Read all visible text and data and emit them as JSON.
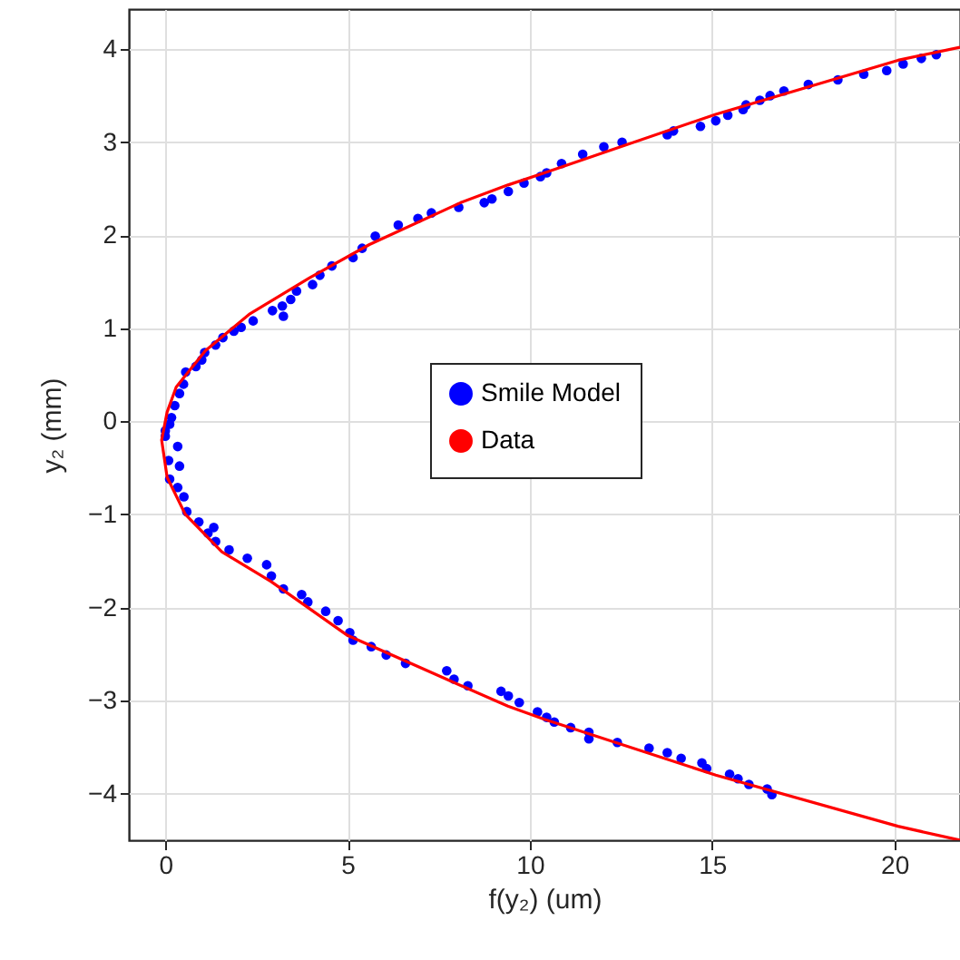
{
  "chart_data": {
    "type": "scatter",
    "xlabel": "f(y₂) (um)",
    "ylabel": "y₂ (mm)",
    "xlim": [
      -1,
      21.8
    ],
    "ylim": [
      -4.5,
      4.43
    ],
    "xticks": [
      0,
      5,
      10,
      15,
      20
    ],
    "yticks": [
      -4,
      -3,
      -2,
      -1,
      0,
      1,
      2,
      3,
      4
    ],
    "grid": true,
    "legend": "right",
    "series": [
      {
        "name": "Smile Model",
        "color": "#0000ff",
        "marker": "circle",
        "x": [
          0.0,
          0.17,
          0.26,
          0.39,
          0.5,
          0.56,
          0.84,
          1.0,
          1.08,
          1.38,
          1.58,
          1.88,
          2.08,
          2.41,
          2.94,
          3.24,
          3.21,
          3.44,
          3.6,
          4.04,
          4.24,
          4.57,
          5.15,
          5.4,
          5.76,
          6.39,
          6.93,
          7.3,
          8.05,
          8.75,
          8.96,
          9.41,
          9.84,
          10.29,
          10.46,
          10.87,
          11.45,
          12.03,
          12.53,
          13.77,
          13.94,
          14.68,
          15.1,
          15.43,
          15.85,
          15.93,
          16.31,
          16.59,
          16.97,
          17.64,
          18.45,
          19.16,
          19.79,
          20.24,
          20.74,
          21.15,
          0.12,
          0.0,
          0.34,
          0.09,
          0.39,
          0.12,
          0.34,
          0.51,
          0.59,
          0.92,
          1.33,
          1.17,
          1.38,
          1.75,
          2.25,
          2.78,
          2.91,
          3.24,
          3.74,
          3.91,
          4.4,
          4.74,
          5.06,
          5.15,
          5.65,
          6.06,
          6.59,
          7.72,
          7.92,
          8.3,
          9.21,
          9.41,
          9.71,
          10.21,
          10.46,
          10.67,
          11.12,
          11.62,
          11.62,
          12.4,
          13.27,
          13.77,
          14.15,
          14.72,
          14.85,
          15.48,
          15.71,
          16.01,
          16.51,
          16.64
        ],
        "values": [
          -0.1,
          0.04,
          0.17,
          0.3,
          0.4,
          0.53,
          0.59,
          0.66,
          0.74,
          0.82,
          0.9,
          0.97,
          1.01,
          1.08,
          1.19,
          1.13,
          1.24,
          1.31,
          1.4,
          1.47,
          1.57,
          1.67,
          1.76,
          1.86,
          1.99,
          2.11,
          2.18,
          2.24,
          2.3,
          2.35,
          2.39,
          2.47,
          2.56,
          2.63,
          2.67,
          2.77,
          2.87,
          2.95,
          3.0,
          3.08,
          3.12,
          3.17,
          3.23,
          3.29,
          3.35,
          3.4,
          3.45,
          3.5,
          3.55,
          3.62,
          3.67,
          3.73,
          3.77,
          3.84,
          3.9,
          3.94,
          -0.03,
          -0.16,
          -0.27,
          -0.42,
          -0.48,
          -0.62,
          -0.71,
          -0.81,
          -0.97,
          -1.08,
          -1.14,
          -1.2,
          -1.29,
          -1.38,
          -1.47,
          -1.54,
          -1.66,
          -1.8,
          -1.86,
          -1.94,
          -2.04,
          -2.14,
          -2.27,
          -2.35,
          -2.42,
          -2.51,
          -2.6,
          -2.68,
          -2.77,
          -2.84,
          -2.9,
          -2.95,
          -3.02,
          -3.12,
          -3.18,
          -3.23,
          -3.29,
          -3.34,
          -3.41,
          -3.45,
          -3.51,
          -3.56,
          -3.62,
          -3.67,
          -3.73,
          -3.79,
          -3.84,
          -3.9,
          -3.95,
          -4.01
        ]
      },
      {
        "name": "Data",
        "type": "line",
        "color": "#ff0000",
        "line_style": "solid",
        "x": [
          21.8,
          20.1,
          15.1,
          10.4,
          9.4,
          7.25,
          5.0,
          2.9,
          1.55,
          0.55,
          0.05,
          -0.1,
          0.05,
          0.3,
          1.1,
          2.3,
          3.95,
          5.6,
          8.1,
          9.4,
          10.4,
          15.1,
          20.1,
          21.8
        ],
        "values": [
          -4.5,
          -4.35,
          -3.8,
          -3.2,
          -3.06,
          -2.69,
          -2.3,
          -1.72,
          -1.4,
          -1.0,
          -0.6,
          -0.2,
          0.1,
          0.37,
          0.76,
          1.15,
          1.54,
          1.9,
          2.35,
          2.54,
          2.67,
          3.3,
          3.88,
          4.02
        ]
      }
    ]
  }
}
